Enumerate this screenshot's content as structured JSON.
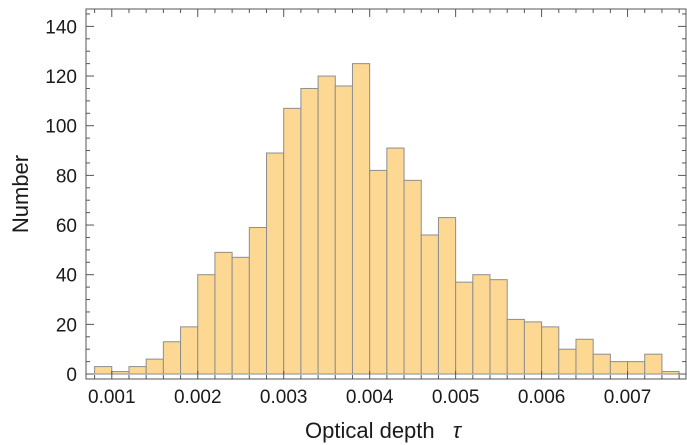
{
  "chart_data": {
    "type": "bar",
    "title": "",
    "xlabel": "Optical depth",
    "xlabel_symbol": "τ",
    "ylabel": "Number",
    "xlim": [
      0.0007,
      0.00768
    ],
    "ylim": [
      -2,
      147
    ],
    "xticks": [
      {
        "value": 0.001,
        "label": "0.001"
      },
      {
        "value": 0.002,
        "label": "0.002"
      },
      {
        "value": 0.003,
        "label": "0.003"
      },
      {
        "value": 0.004,
        "label": "0.004"
      },
      {
        "value": 0.005,
        "label": "0.005"
      },
      {
        "value": 0.006,
        "label": "0.006"
      },
      {
        "value": 0.007,
        "label": "0.007"
      }
    ],
    "yticks": [
      {
        "value": 0,
        "label": "0"
      },
      {
        "value": 20,
        "label": "20"
      },
      {
        "value": 40,
        "label": "40"
      },
      {
        "value": 60,
        "label": "60"
      },
      {
        "value": 80,
        "label": "80"
      },
      {
        "value": 100,
        "label": "100"
      },
      {
        "value": 120,
        "label": "120"
      },
      {
        "value": 140,
        "label": "140"
      }
    ],
    "bin_start": 0.0008,
    "bin_width": 0.0002,
    "values": [
      3,
      1,
      3,
      6,
      13,
      19,
      40,
      49,
      47,
      59,
      89,
      107,
      115,
      120,
      116,
      125,
      82,
      91,
      78,
      56,
      63,
      37,
      40,
      38,
      22,
      21,
      19,
      10,
      14,
      8,
      5,
      5,
      8,
      1
    ],
    "bar_color": "#fcd893",
    "edge_color": "#8e8e8e",
    "grid": false,
    "legend": "none"
  }
}
